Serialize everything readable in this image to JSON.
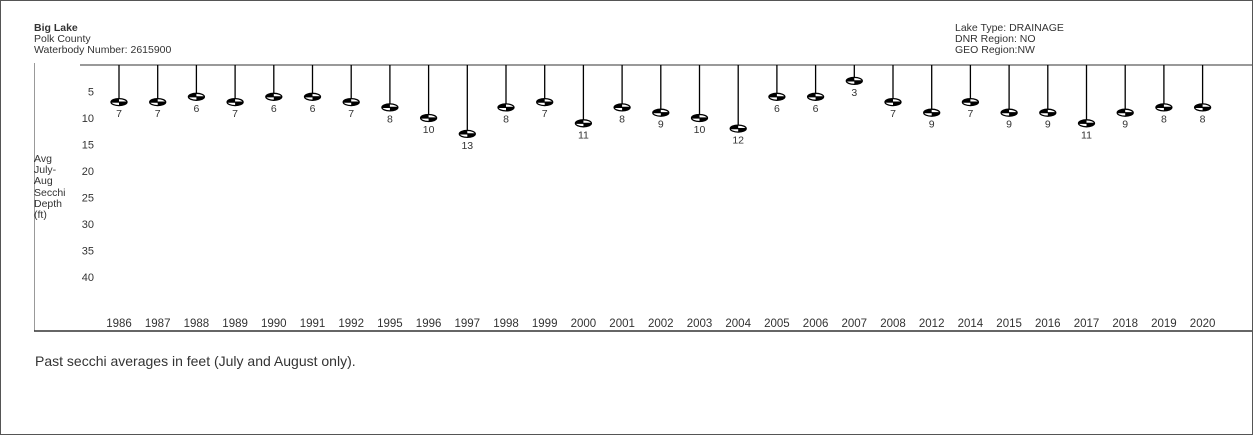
{
  "header": {
    "lake_name": "Big Lake",
    "county": "Polk County",
    "waterbody": "Waterbody Number: 2615900",
    "lake_type": "Lake Type: DRAINAGE",
    "dnr_region": "DNR Region: NO",
    "geo_region": "GEO Region:NW"
  },
  "caption": "Past secchi averages in feet (July and August only).",
  "chart_data": {
    "type": "bar",
    "title": "",
    "ylabel_lines": [
      "Avg",
      "July-",
      "Aug",
      "Secchi",
      "Depth",
      "(ft)"
    ],
    "y_ticks": [
      5,
      10,
      15,
      20,
      25,
      30,
      35,
      40
    ],
    "y_inverted": true,
    "ylim": [
      0,
      44
    ],
    "categories": [
      "1986",
      "1987",
      "1988",
      "1989",
      "1990",
      "1991",
      "1992",
      "1995",
      "1996",
      "1997",
      "1998",
      "1999",
      "2000",
      "2001",
      "2002",
      "2003",
      "2004",
      "2005",
      "2006",
      "2007",
      "2008",
      "2012",
      "2014",
      "2015",
      "2016",
      "2017",
      "2018",
      "2019",
      "2020"
    ],
    "values": [
      7,
      7,
      6,
      7,
      6,
      6,
      7,
      8,
      10,
      13,
      8,
      7,
      11,
      8,
      9,
      10,
      12,
      6,
      6,
      3,
      7,
      9,
      7,
      9,
      9,
      11,
      9,
      8,
      8
    ],
    "line_color": "#000000",
    "grid": false
  }
}
